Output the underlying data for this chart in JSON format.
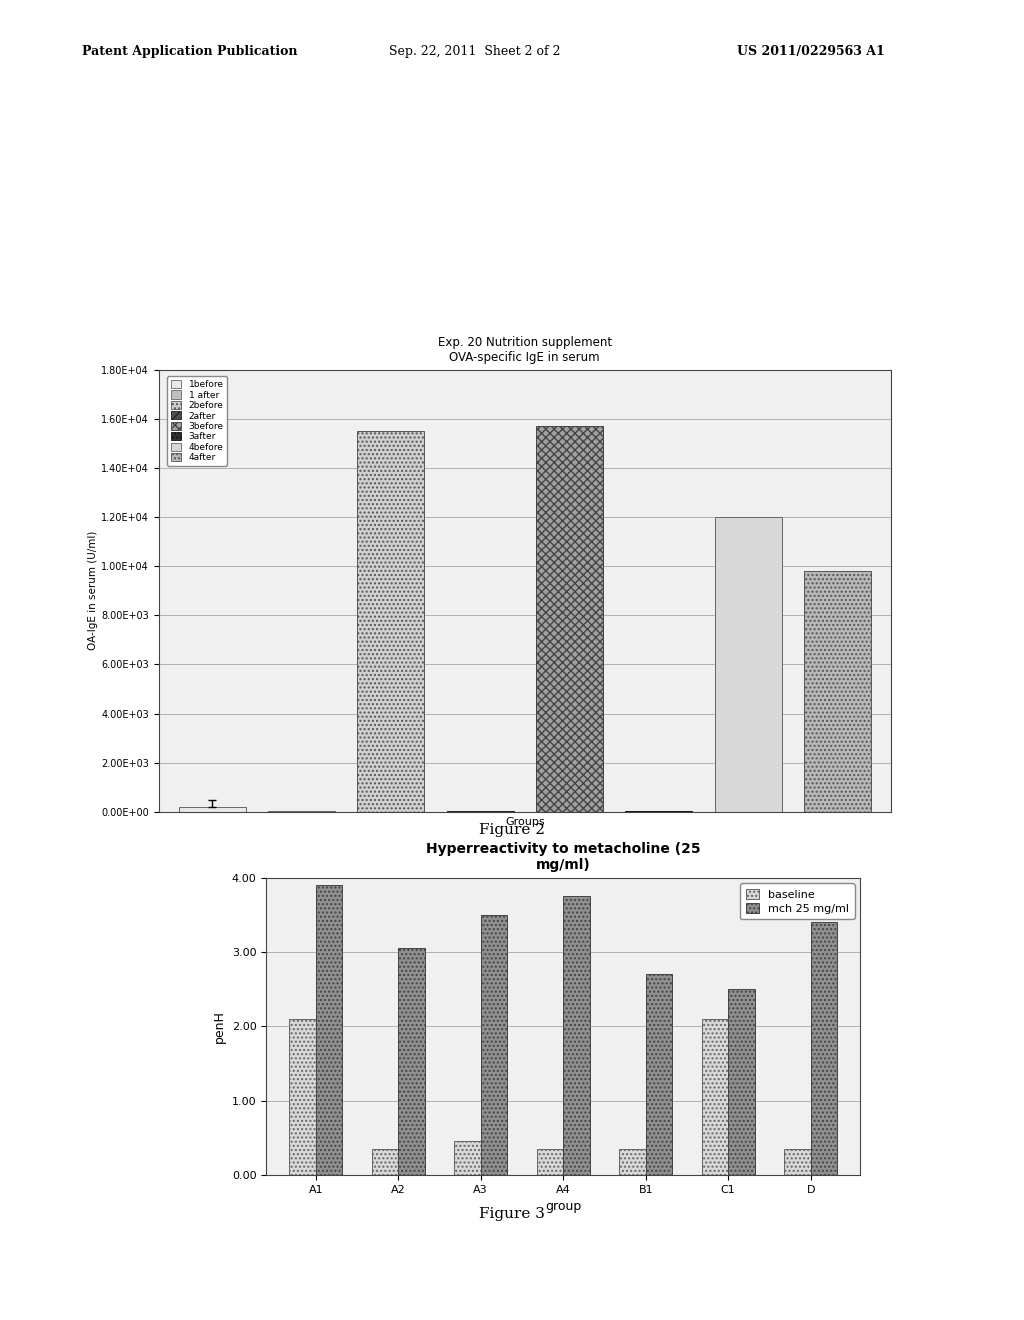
{
  "fig2": {
    "title": "Exp. 20 Nutrition supplement\nOVA-specific IgE in serum",
    "xlabel": "Groups",
    "ylabel": "OA-IgE in serum (U/ml)",
    "categories": [
      "1before",
      "1 after",
      "2before",
      "2after",
      "3before",
      "3after",
      "4before",
      "4after"
    ],
    "values": [
      200,
      50,
      15500,
      50,
      15700,
      50,
      12000,
      9800
    ],
    "error_val": 300,
    "ylim": [
      0,
      18000
    ],
    "yticks": [
      0,
      2000,
      4000,
      6000,
      8000,
      10000,
      12000,
      14000,
      16000,
      18000
    ],
    "yticklabels": [
      "0.00E+00",
      "2.00E+03",
      "4.00E+03",
      "6.00E+03",
      "8.00E+03",
      "1.00E+04",
      "1.20E+04",
      "1.40E+04",
      "1.60E+04",
      "1.80E+04"
    ],
    "legend_labels": [
      "1before",
      "1 after",
      "2before",
      "2after",
      "3before",
      "3after",
      "4before",
      "4after"
    ]
  },
  "fig3": {
    "title": "Hyperreactivity to metacholine (25\nmg/ml)",
    "xlabel": "group",
    "ylabel": "penH",
    "groups": [
      "A1",
      "A2",
      "A3",
      "A4",
      "B1",
      "C1",
      "D"
    ],
    "baseline": [
      2.1,
      0.35,
      0.45,
      0.35,
      0.35,
      2.1,
      0.35
    ],
    "mch": [
      3.9,
      3.05,
      3.5,
      3.75,
      2.7,
      2.5,
      3.4
    ],
    "ylim": [
      0,
      4.0
    ],
    "yticks": [
      0.0,
      1.0,
      2.0,
      3.0,
      4.0
    ],
    "yticklabels": [
      "0.00",
      "1.00",
      "2.00",
      "3.00",
      "4.00"
    ],
    "legend_labels": [
      "baseline",
      "mch 25 mg/ml"
    ]
  },
  "figure2_label": "Figure 2",
  "figure3_label": "Figure 3",
  "header_bold": "Patent Application Publication",
  "header_mid": "    Sep. 22, 2011  Sheet 2 of 2    ",
  "header_right": "US 2011/0229563 A1"
}
